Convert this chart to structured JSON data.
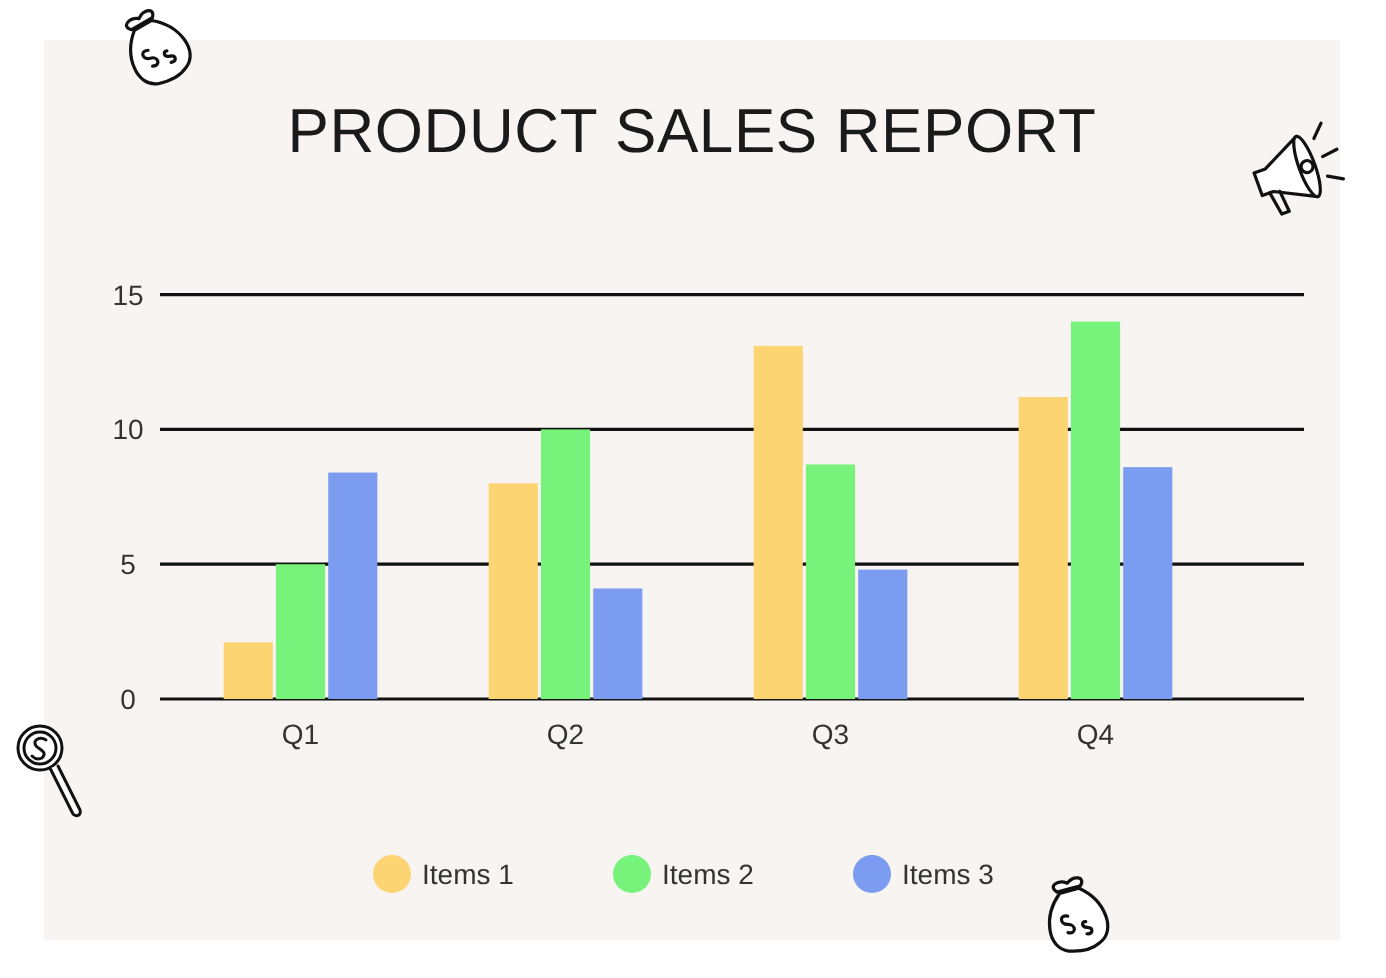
{
  "chart_data": {
    "type": "bar",
    "title": "PRODUCT SALES REPORT",
    "categories": [
      "Q1",
      "Q2",
      "Q3",
      "Q4"
    ],
    "series": [
      {
        "name": "Items 1",
        "color": "#fdd472",
        "values": [
          2.1,
          8,
          13.1,
          11.2
        ]
      },
      {
        "name": "Items 2",
        "color": "#77f27a",
        "values": [
          5,
          10,
          8.7,
          14
        ]
      },
      {
        "name": "Items 3",
        "color": "#7b9cf0",
        "values": [
          8.4,
          4.1,
          4.8,
          8.6
        ]
      }
    ],
    "ylim": [
      0,
      15
    ],
    "yticks": [
      0,
      5,
      10,
      15
    ],
    "grid": "y",
    "legend": "bottom"
  }
}
